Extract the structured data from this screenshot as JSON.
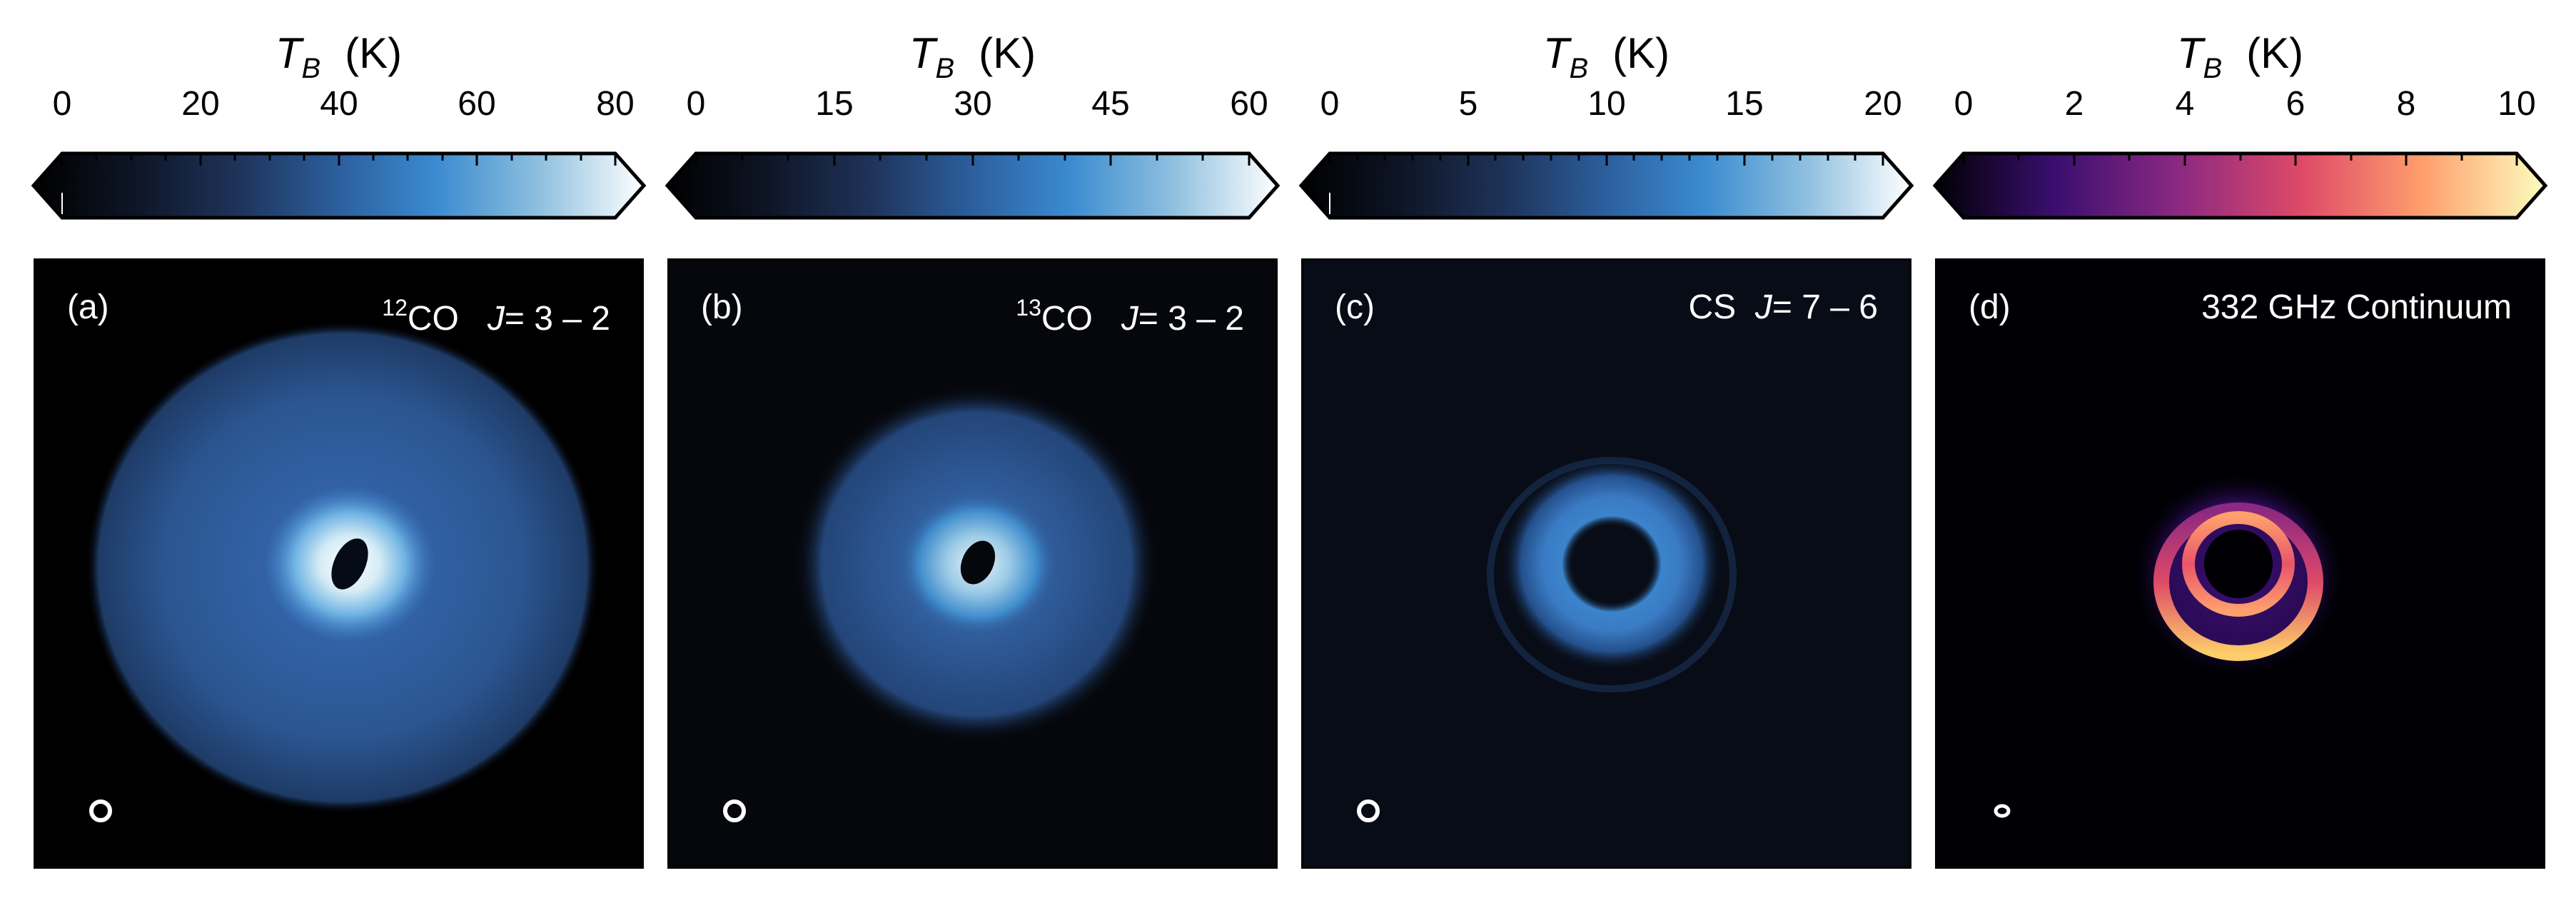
{
  "colorbar_title": {
    "symbol": "T",
    "subscript": "B",
    "unit": "(K)"
  },
  "panels": [
    {
      "label": "(a)",
      "title_sup": "12",
      "title_species": "CO",
      "title_trans_j": "J",
      "title_trans_val": "= 3 – 2",
      "title_plain": "",
      "ticks": [
        "0",
        "20",
        "40",
        "60",
        "80"
      ],
      "cmap": "ice",
      "extend": "both"
    },
    {
      "label": "(b)",
      "title_sup": "13",
      "title_species": "CO",
      "title_trans_j": "J",
      "title_trans_val": "= 3 – 2",
      "title_plain": "",
      "ticks": [
        "0",
        "15",
        "30",
        "45",
        "60"
      ],
      "cmap": "ice",
      "extend": "both"
    },
    {
      "label": "(c)",
      "title_sup": "",
      "title_species": "CS",
      "title_trans_j": "J",
      "title_trans_val": "= 7 – 6",
      "title_plain": "",
      "ticks": [
        "0",
        "5",
        "10",
        "15",
        "20"
      ],
      "cmap": "ice",
      "extend": "both"
    },
    {
      "label": "(d)",
      "title_sup": "",
      "title_species": "",
      "title_trans_j": "",
      "title_trans_val": "",
      "title_plain": "332 GHz Continuum",
      "ticks": [
        "0",
        "2",
        "4",
        "6",
        "8",
        "10"
      ],
      "cmap": "inferno",
      "extend": "both"
    }
  ],
  "colors": {
    "ice": [
      "#000000",
      "#0d1424",
      "#1e3258",
      "#2c5f9e",
      "#3b8bd0",
      "#8fc0df",
      "#ffffff"
    ],
    "inferno": [
      "#000004",
      "#3b0f70",
      "#8c2981",
      "#de4968",
      "#fe9f6d",
      "#fcfdbf"
    ],
    "frame": "#000000",
    "background": "#ffffff"
  }
}
